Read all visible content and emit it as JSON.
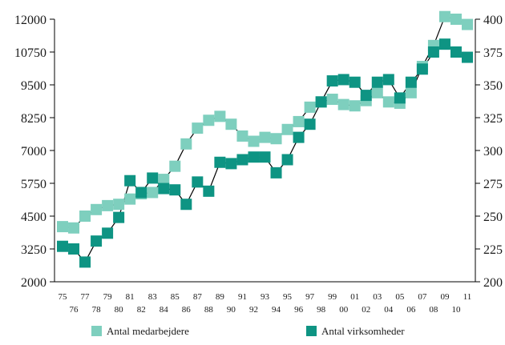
{
  "chart_data": {
    "type": "line",
    "title": "",
    "xlabel": "",
    "ylabel": "",
    "categories": [
      "75",
      "76",
      "77",
      "78",
      "79",
      "80",
      "81",
      "82",
      "83",
      "84",
      "85",
      "86",
      "87",
      "88",
      "89",
      "90",
      "91",
      "92",
      "93",
      "94",
      "95",
      "96",
      "97",
      "98",
      "99",
      "00",
      "01",
      "02",
      "03",
      "04",
      "05",
      "06",
      "07",
      "08",
      "09",
      "10",
      "11"
    ],
    "x_tick_labels_top": [
      "75",
      "77",
      "79",
      "81",
      "83",
      "85",
      "87",
      "89",
      "91",
      "93",
      "95",
      "97",
      "99",
      "01",
      "03",
      "05",
      "07",
      "09",
      "11"
    ],
    "x_tick_labels_bottom": [
      "76",
      "78",
      "80",
      "82",
      "84",
      "86",
      "88",
      "90",
      "92",
      "94",
      "96",
      "98",
      "00",
      "02",
      "04",
      "06",
      "08",
      "10"
    ],
    "y_left": {
      "ylim": [
        2000,
        12000
      ],
      "ticks": [
        "2000",
        "3250",
        "4500",
        "5750",
        "7000",
        "8250",
        "9500",
        "10750",
        "12000"
      ]
    },
    "y_right": {
      "ylim": [
        200,
        400
      ],
      "ticks": [
        "200",
        "225",
        "250",
        "275",
        "300",
        "325",
        "350",
        "375",
        "400"
      ]
    },
    "series": [
      {
        "name": "Antal medarbejdere",
        "axis": "left",
        "color": "#7ecfbe",
        "values": [
          4100,
          4050,
          4500,
          4750,
          4900,
          4950,
          5150,
          5350,
          5400,
          5900,
          6400,
          7250,
          7850,
          8150,
          8300,
          8000,
          7550,
          7350,
          7500,
          7450,
          7800,
          8100,
          8650,
          8850,
          8950,
          8750,
          8700,
          8900,
          9200,
          8850,
          8800,
          9200,
          10200,
          11000,
          12100,
          12000,
          11800
        ]
      },
      {
        "name": "Antal virksomheder",
        "axis": "right",
        "color": "#0e9483",
        "values": [
          227,
          225,
          215,
          231,
          237,
          249,
          277,
          268,
          279,
          271,
          270,
          259,
          276,
          269,
          291,
          290,
          293,
          295,
          295,
          283,
          293,
          310,
          320,
          337,
          353,
          354,
          352,
          342,
          352,
          354,
          340,
          352,
          362,
          375,
          381,
          375,
          371
        ]
      }
    ],
    "legend": {
      "position": "bottom"
    },
    "grid": false
  }
}
